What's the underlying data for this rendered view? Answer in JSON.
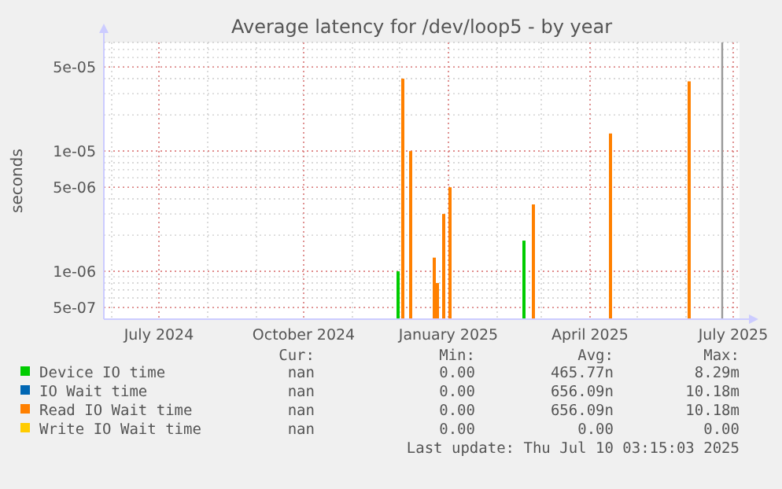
{
  "chart_data": {
    "type": "bar",
    "title": "Average latency for /dev/loop5 - by year",
    "ylabel": "seconds",
    "log": true,
    "grid": true,
    "legend": "bottom",
    "xlim": [
      "2024-05-27",
      "2025-07-05"
    ],
    "xticks": [
      {
        "value": "2024-07-01",
        "label": "July 2024"
      },
      {
        "value": "2024-10-01",
        "label": "October 2024"
      },
      {
        "value": "2025-01-01",
        "label": "January 2025"
      },
      {
        "value": "2025-04-01",
        "label": "April 2025"
      },
      {
        "value": "2025-07-01",
        "label": "July 2025"
      }
    ],
    "ylim": [
      4e-07,
      8e-05
    ],
    "yticks": [
      {
        "value": 5e-07,
        "label": "5e-07"
      },
      {
        "value": 1e-06,
        "label": "1e-06"
      },
      {
        "value": 5e-06,
        "label": "5e-06"
      },
      {
        "value": 1e-05,
        "label": "1e-05"
      },
      {
        "value": 5e-05,
        "label": "5e-05"
      }
    ],
    "series": [
      {
        "name": "Device IO time",
        "color": "#00cc00",
        "x": [
          "2024-11-30",
          "2025-02-18"
        ],
        "values": [
          1e-06,
          1.8e-06
        ]
      },
      {
        "name": "IO Wait time",
        "color": "#0066b3"
      },
      {
        "name": "Read IO Wait time",
        "color": "#ff8000",
        "x": [
          "2024-12-03",
          "2024-12-08",
          "2024-12-23",
          "2024-12-25",
          "2024-12-29",
          "2025-01-02",
          "2025-02-24",
          "2025-04-14",
          "2025-06-03"
        ],
        "values": [
          4e-05,
          1e-05,
          1.3e-06,
          8e-07,
          3e-06,
          5e-06,
          3.6e-06,
          1.4e-05,
          3.8e-05
        ]
      },
      {
        "name": "Write IO Wait time",
        "color": "#ffcc00"
      }
    ],
    "ref_lines": [
      {
        "axis": "x",
        "value": "2025-06-24",
        "color": "#999999"
      }
    ],
    "annotations": [
      "Cur:",
      "Min:",
      "Avg:",
      "Max:",
      "nan",
      "0.00",
      "465.77n",
      "8.29m",
      "nan",
      "0.00",
      "656.09n",
      "10.18m",
      "nan",
      "0.00",
      "656.09n",
      "10.18m",
      "nan",
      "0.00",
      "0.00",
      "0.00",
      "Last update: Thu Jul 10 03:15:03 2025"
    ]
  }
}
